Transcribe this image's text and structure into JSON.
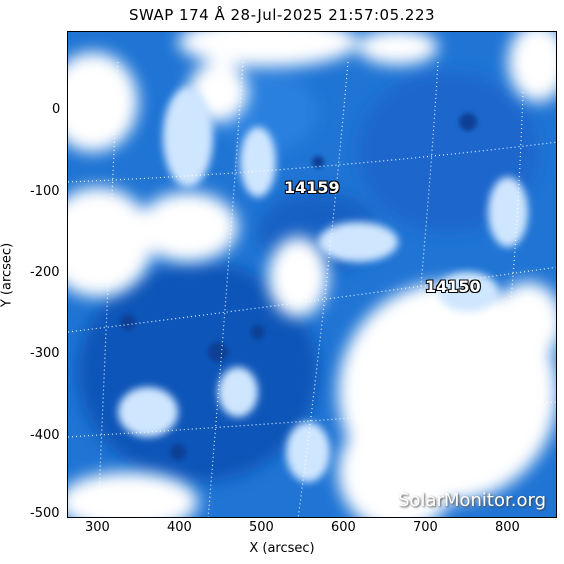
{
  "title": "SWAP 174 Å 28-Jul-2025 21:57:05.223",
  "x_axis": {
    "label": "X (arcsec)",
    "ticks": [
      "300",
      "400",
      "500",
      "600",
      "700",
      "800"
    ]
  },
  "y_axis": {
    "label": "Y (arcsec)",
    "ticks": [
      "0",
      "-100",
      "-200",
      "-300",
      "-400",
      "-500"
    ]
  },
  "active_regions": [
    {
      "id": "14159"
    },
    {
      "id": "14150"
    }
  ],
  "watermark": "SolarMonitor.org",
  "colors": {
    "frame": "#000000",
    "plasma_dark": "#0b4fb0",
    "plasma_mid": "#2f85e0",
    "plasma_light": "#bfe0ff"
  }
}
